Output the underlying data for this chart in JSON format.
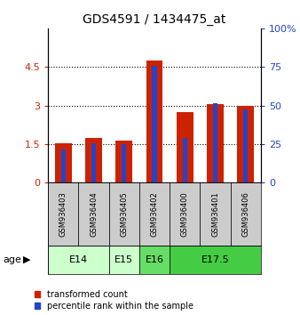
{
  "title": "GDS4591 / 1434475_at",
  "samples": [
    "GSM936403",
    "GSM936404",
    "GSM936405",
    "GSM936402",
    "GSM936400",
    "GSM936401",
    "GSM936406"
  ],
  "transformed_count": [
    1.55,
    1.75,
    1.65,
    4.75,
    2.75,
    3.05,
    3.0
  ],
  "percentile_rank_scaled": [
    1.3,
    1.55,
    1.5,
    4.55,
    1.75,
    3.1,
    2.85
  ],
  "ages": [
    {
      "label": "E14",
      "span": [
        0,
        2
      ],
      "color": "#ccffcc"
    },
    {
      "label": "E15",
      "span": [
        2,
        3
      ],
      "color": "#ccffcc"
    },
    {
      "label": "E16",
      "span": [
        3,
        4
      ],
      "color": "#66dd66"
    },
    {
      "label": "E17.5",
      "span": [
        4,
        7
      ],
      "color": "#44cc44"
    }
  ],
  "bar_color_red": "#cc2200",
  "bar_color_blue": "#2244cc",
  "ylim_left": [
    0,
    6
  ],
  "ylim_right": [
    0,
    100
  ],
  "yticks_left": [
    0,
    1.5,
    3.0,
    4.5
  ],
  "ytick_labels_left": [
    "0",
    "1.5",
    "3",
    "4.5"
  ],
  "yticks_right": [
    0,
    25,
    50,
    75,
    100
  ],
  "ytick_labels_right": [
    "0",
    "25",
    "50",
    "75",
    "100%"
  ],
  "sample_bg_color": "#cccccc",
  "legend_label_red": "transformed count",
  "legend_label_blue": "percentile rank within the sample",
  "age_label": "age",
  "red_bar_width": 0.55,
  "blue_bar_width": 0.15
}
